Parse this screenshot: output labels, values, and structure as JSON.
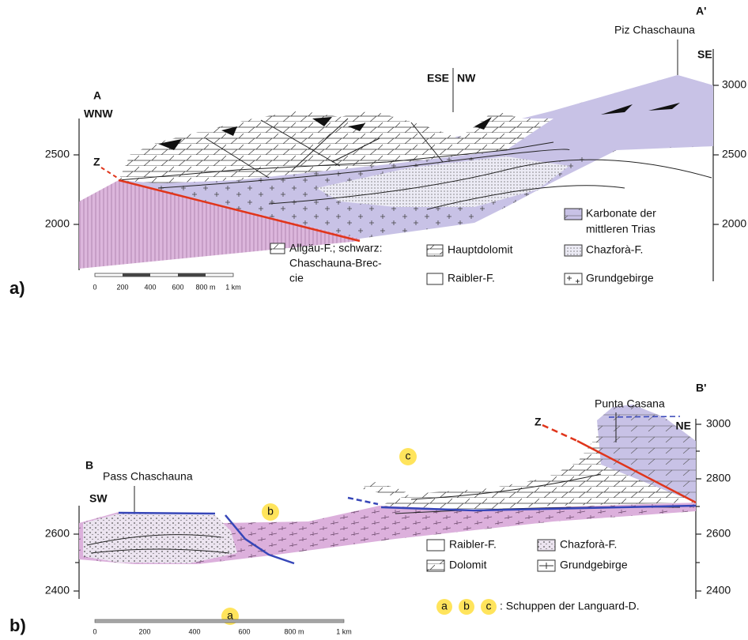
{
  "panel_a": {
    "label": "a)",
    "start_point": "A",
    "end_point": "A'",
    "start_direction": "WNW",
    "end_direction": "SE",
    "bend_left": "ESE",
    "bend_right": "NW",
    "peak": "Piz Chaschauna",
    "fault": "Z",
    "elevation_left": [
      2500,
      2000
    ],
    "elevation_right": [
      3000,
      2500,
      2000
    ],
    "scale_bar": [
      0,
      200,
      400,
      600,
      "800 m",
      "1 km"
    ],
    "legend": {
      "allgaeu": [
        "Allgäu-F.; schwarz:",
        "Chaschauna-Brec-",
        "cie"
      ],
      "hauptdolomit": "Hauptdolomit",
      "raibler": "Raibler-F.",
      "karbonate": [
        "Karbonate der",
        "mittleren Trias"
      ],
      "chazfora": "Chazforà-F.",
      "grundgebirge": "Grundgebirge"
    }
  },
  "panel_b": {
    "label": "b)",
    "start_point": "B",
    "end_point": "B'",
    "start_direction": "SW",
    "end_direction": "NE",
    "pass": "Pass Chaschauna",
    "peak": "Punta Casana",
    "fault": "Z",
    "elevation_left": [
      2600,
      2400
    ],
    "elevation_right": [
      3000,
      2800,
      2600,
      2400
    ],
    "scale_bar": [
      0,
      200,
      400,
      600,
      "800 m",
      "1 km"
    ],
    "units": [
      "a",
      "b",
      "c"
    ],
    "legend": {
      "raibler": "Raibler-F.",
      "chazfora": "Chazforà-F.",
      "dolomit": "Dolomit",
      "grundgebirge": "Grundgebirge",
      "note": ": Schuppen der Languard-D."
    }
  }
}
